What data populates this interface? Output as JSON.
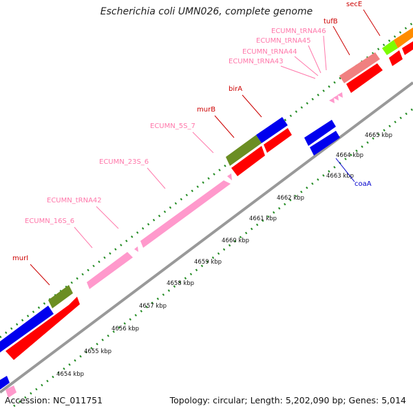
{
  "title": "Escherichia coli UMN026, complete genome",
  "footer": {
    "accession": "Accession: NC_011751",
    "summary": "Topology: circular; Length: 5,202,090 bp; Genes: 5,014"
  },
  "colors": {
    "cds": "#ff0000",
    "blue_feature": "#0000ee",
    "rna": "#ff99cc",
    "olive": "#6b8e23",
    "label_red": "#cc0000",
    "label_pink": "#ff77aa",
    "label_blue": "#0000cc",
    "tick": "#228b22",
    "backbone": "#999999"
  },
  "ticks": [
    {
      "label": "4654 kbp"
    },
    {
      "label": "4655 kbp"
    },
    {
      "label": "4656 kbp"
    },
    {
      "label": "4657 kbp"
    },
    {
      "label": "4658 kbp"
    },
    {
      "label": "4659 kbp"
    },
    {
      "label": "4660 kbp"
    },
    {
      "label": "4661 kbp"
    },
    {
      "label": "4662 kbp"
    },
    {
      "label": "4663 kbp"
    },
    {
      "label": "4664 kbp"
    },
    {
      "label": "4665 kbp"
    }
  ],
  "gene_labels": [
    {
      "name": "murI",
      "color": "label_red"
    },
    {
      "name": "ECUMN_16S_6",
      "color": "label_pink"
    },
    {
      "name": "ECUMN_tRNA42",
      "color": "label_pink"
    },
    {
      "name": "ECUMN_23S_6",
      "color": "label_pink"
    },
    {
      "name": "ECUMN_5S_7",
      "color": "label_pink"
    },
    {
      "name": "murB",
      "color": "label_red"
    },
    {
      "name": "birA",
      "color": "label_red"
    },
    {
      "name": "ECUMN_tRNA43",
      "color": "label_pink"
    },
    {
      "name": "ECUMN_tRNA44",
      "color": "label_pink"
    },
    {
      "name": "ECUMN_tRNA45",
      "color": "label_pink"
    },
    {
      "name": "ECUMN_tRNA46",
      "color": "label_pink"
    },
    {
      "name": "tufB",
      "color": "label_red"
    },
    {
      "name": "secE",
      "color": "label_red"
    },
    {
      "name": "coaA",
      "color": "label_blue"
    }
  ]
}
